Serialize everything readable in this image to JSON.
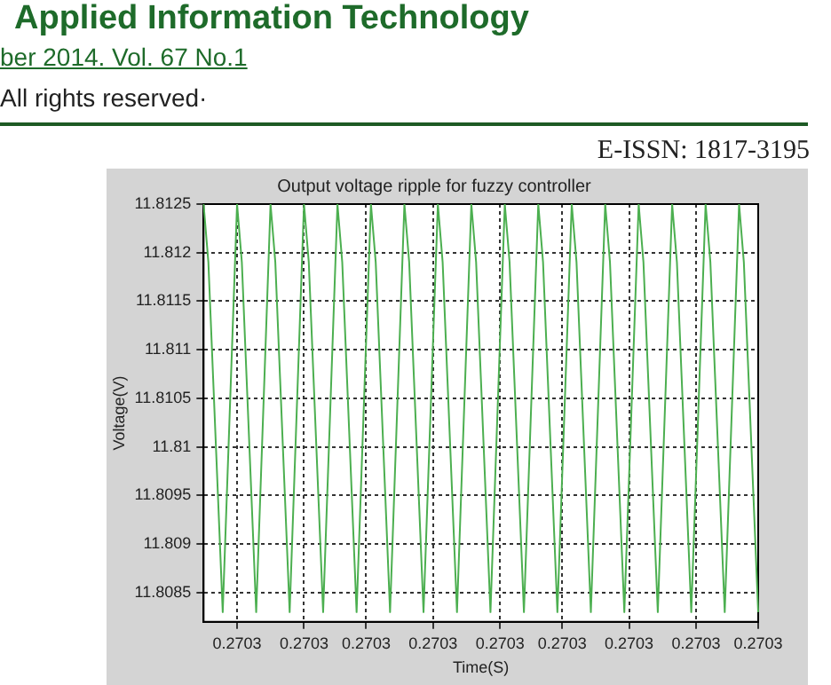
{
  "chart_data": {
    "type": "line",
    "title": "Output voltage ripple for fuzzy controller",
    "xlabel": "Time(S)",
    "ylabel": "Voltage(V)",
    "categories": [
      null,
      null,
      null,
      null,
      null,
      null,
      null,
      "0.2703",
      null,
      null,
      null,
      null,
      null,
      null,
      null,
      null,
      null,
      null,
      null,
      null,
      null,
      "0.2703",
      null,
      null,
      null,
      null,
      null,
      null,
      null,
      null,
      null,
      null,
      null,
      null,
      "0.2703",
      null,
      null,
      null,
      null,
      null,
      null,
      null,
      null,
      null,
      null,
      null,
      null,
      null,
      "0.2703",
      null,
      null,
      null,
      null,
      null,
      null,
      null,
      null,
      null,
      null,
      null,
      null,
      null,
      "0.2703",
      null,
      null,
      null,
      null,
      null,
      null,
      null,
      null,
      null,
      null,
      null,
      null,
      "0.2703",
      null,
      null,
      null,
      null,
      null,
      null,
      null,
      null,
      null,
      null,
      null,
      null,
      null,
      "0.2703",
      null,
      null,
      null,
      null,
      null,
      null,
      null,
      null,
      null,
      null,
      null,
      null,
      null,
      "0.2703",
      null,
      null,
      null,
      null,
      null,
      null,
      null,
      null,
      null,
      null,
      null,
      null,
      "0.2703"
    ],
    "values": [
      11.8125,
      11.8119,
      11.8107,
      11.8095,
      11.8083,
      11.8097,
      11.8111,
      11.8125,
      11.8119,
      11.8107,
      11.8095,
      11.8083,
      11.8097,
      11.8111,
      11.8125,
      11.8119,
      11.8107,
      11.8095,
      11.8083,
      11.8097,
      11.8111,
      11.8125,
      11.8119,
      11.8107,
      11.8095,
      11.8083,
      11.8097,
      11.8111,
      11.8125,
      11.8119,
      11.8107,
      11.8095,
      11.8083,
      11.8097,
      11.8111,
      11.8125,
      11.8119,
      11.8107,
      11.8095,
      11.8083,
      11.8097,
      11.8111,
      11.8125,
      11.8119,
      11.8107,
      11.8095,
      11.8083,
      11.8097,
      11.8111,
      11.8125,
      11.8119,
      11.8107,
      11.8095,
      11.8083,
      11.8097,
      11.8111,
      11.8125,
      11.8119,
      11.8107,
      11.8095,
      11.8083,
      11.8097,
      11.8111,
      11.8125,
      11.8119,
      11.8107,
      11.8095,
      11.8083,
      11.8097,
      11.8111,
      11.8125,
      11.8119,
      11.8107,
      11.8095,
      11.8083,
      11.8097,
      11.8111,
      11.8125,
      11.8119,
      11.8107,
      11.8095,
      11.8083,
      11.8097,
      11.8111,
      11.8125,
      11.8119,
      11.8107,
      11.8095,
      11.8083,
      11.8097,
      11.8111,
      11.8125,
      11.8119,
      11.8107,
      11.8095,
      11.8083,
      11.8097,
      11.8111,
      11.8125,
      11.8119,
      11.8107,
      11.8095,
      11.8083,
      11.8097,
      11.8111,
      11.8125,
      11.8119,
      11.8107,
      11.8095,
      11.8083,
      11.8097,
      11.8111,
      11.8125,
      11.8119,
      11.8107,
      11.8095,
      11.8083
    ],
    "color": "#4caf50",
    "ylim": [
      11.8082,
      11.8125
    ],
    "yticks": [
      11.8085,
      11.809,
      11.8095,
      11.81,
      11.8105,
      11.811,
      11.8115,
      11.812,
      11.8125
    ],
    "grid": true,
    "annotations": [
      "Applied Information Technology",
      "ber 2014. Vol. 67 No.1",
      "All rights reserved·",
      "E-ISSN: 1817-3195"
    ]
  }
}
